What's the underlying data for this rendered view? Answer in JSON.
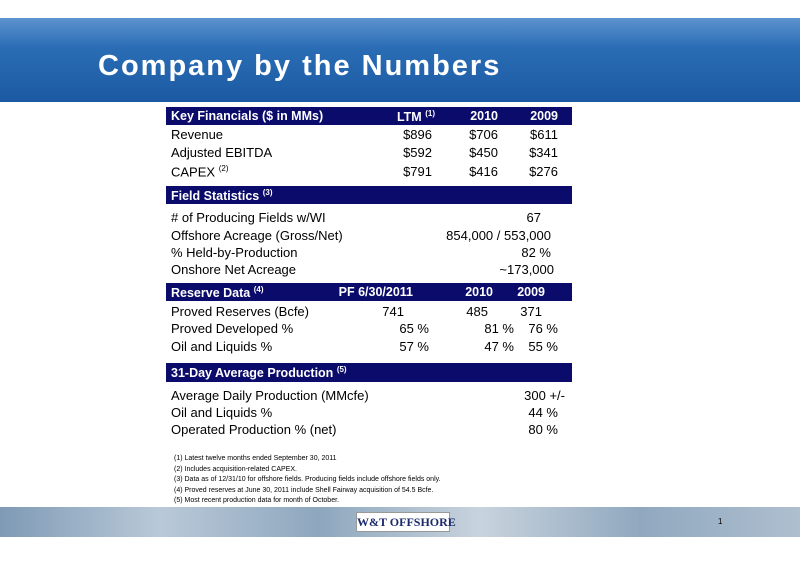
{
  "header": {
    "title": "Company by the Numbers"
  },
  "sections": [
    {
      "title": "Key Financials ($ in MMs)",
      "sup": null,
      "columns": [
        {
          "text": "LTM",
          "sup": "(1)"
        },
        {
          "text": "2010",
          "sup": null
        },
        {
          "text": "2009",
          "sup": null
        }
      ],
      "rows": [
        {
          "label": "Revenue",
          "sup": null,
          "values": [
            "$896",
            "$706",
            "$611"
          ]
        },
        {
          "label": "Adjusted EBITDA",
          "sup": null,
          "values": [
            "$592",
            "$450",
            "$341"
          ]
        },
        {
          "label": "CAPEX",
          "sup": "(2)",
          "values": [
            "$791",
            "$416",
            "$276"
          ]
        }
      ]
    },
    {
      "title": "Field Statistics",
      "sup": "(3)",
      "columns": [],
      "rows": [
        {
          "label": "# of Producing Fields w/WI",
          "sup": null,
          "values": [
            "67"
          ]
        },
        {
          "label": "Offshore Acreage (Gross/Net)",
          "sup": null,
          "values": [
            "854,000 / 553,000"
          ]
        },
        {
          "label": "% Held-by-Production",
          "sup": null,
          "values": [
            "82 %"
          ]
        },
        {
          "label": "Onshore Net Acreage",
          "sup": null,
          "values": [
            "~173,000"
          ]
        }
      ]
    },
    {
      "title": "Reserve Data",
      "sup": "(4)",
      "columns": [
        {
          "text": "PF 6/30/2011",
          "sup": null
        },
        {
          "text": "2010",
          "sup": null
        },
        {
          "text": "2009",
          "sup": null
        }
      ],
      "rows": [
        {
          "label": "Proved Reserves (Bcfe)",
          "sup": null,
          "values": [
            "741",
            "485",
            "371"
          ]
        },
        {
          "label": "Proved Developed %",
          "sup": null,
          "values": [
            "65 %",
            "81 %",
            "76 %"
          ]
        },
        {
          "label": "Oil and Liquids %",
          "sup": null,
          "values": [
            "57 %",
            "47 %",
            "55 %"
          ]
        }
      ]
    },
    {
      "title": "31-Day Average Production",
      "sup": "(5)",
      "columns": [],
      "rows": [
        {
          "label": "Average Daily Production (MMcfe)",
          "sup": null,
          "values": [
            "300 +/-"
          ]
        },
        {
          "label": "Oil and Liquids %",
          "sup": null,
          "values": [
            "44 %"
          ]
        },
        {
          "label": "Operated Production % (net)",
          "sup": null,
          "values": [
            "80 %"
          ]
        }
      ]
    }
  ],
  "footnotes": [
    "(1) Latest twelve months ended September 30, 2011",
    "(2) Includes acquisition-related CAPEX.",
    "(3) Data as of 12/31/10 for offshore fields.  Producing fields include offshore fields only.",
    "(4) Proved reserves at June 30, 2011 include Shell Fairway acquisition of 54.5 Bcfe.",
    "(5) Most recent production data for month of October."
  ],
  "footer": {
    "logo": "W&T OFFSHORE",
    "page": "1"
  }
}
